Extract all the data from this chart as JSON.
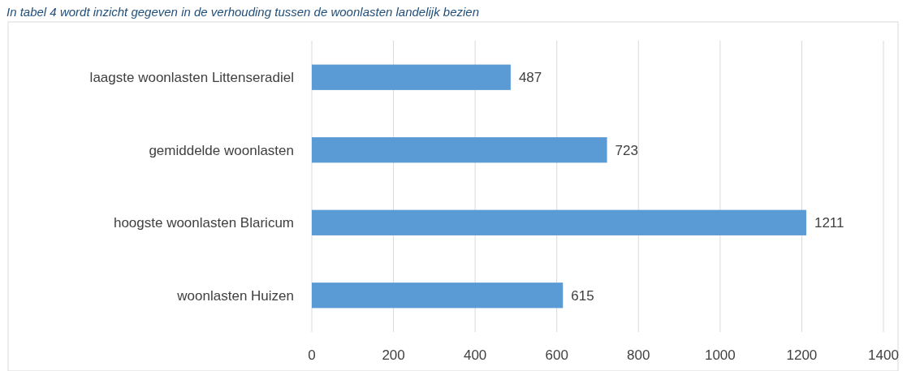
{
  "chart_data": {
    "type": "bar",
    "orientation": "horizontal",
    "annotations": [
      "In tabel 4 wordt inzicht gegeven in de verhouding tussen de woonlasten landelijk bezien"
    ],
    "categories": [
      "laagste woonlasten Littenseradiel",
      "gemiddelde woonlasten ",
      "hoogste woonlasten Blaricum",
      "woonlasten Huizen"
    ],
    "values": [
      487,
      723,
      1211,
      615
    ],
    "color": "#5b9bd5",
    "data_labels": true,
    "xlim": [
      0,
      1400
    ],
    "xticks": [
      0,
      200,
      400,
      600,
      800,
      1000,
      1200,
      1400
    ],
    "grid": "x"
  }
}
